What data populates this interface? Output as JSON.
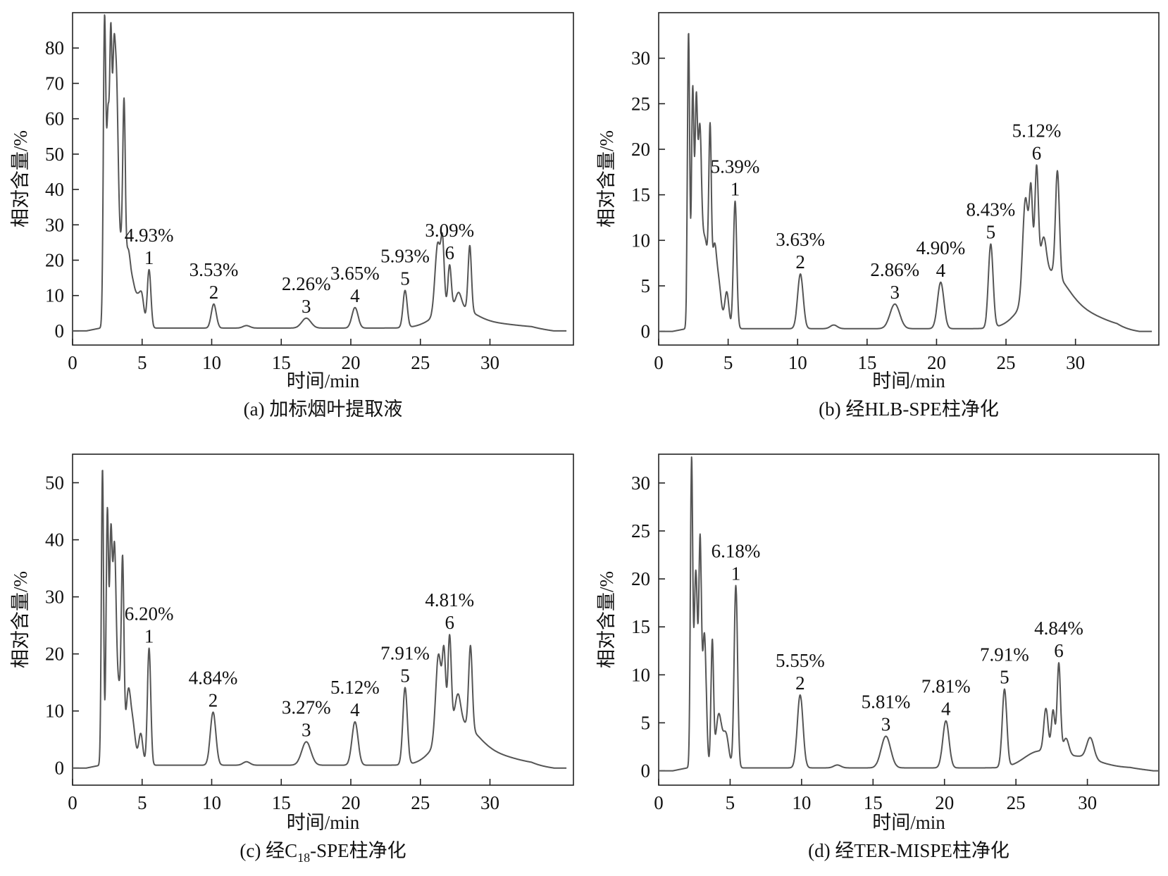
{
  "chart_data": [
    {
      "id": "a",
      "type": "line",
      "caption": "(a) 加标烟叶提取液",
      "xlabel": "时间/min",
      "ylabel": "相对含量/%",
      "xlim": [
        0,
        36
      ],
      "ylim": [
        -4,
        90
      ],
      "xticks": [
        0,
        5,
        10,
        15,
        20,
        25,
        30
      ],
      "yticks": [
        0,
        10,
        20,
        30,
        40,
        50,
        60,
        70,
        80
      ],
      "baseline": 0.8,
      "peaks": [
        [
          2.3,
          86,
          0.09
        ],
        [
          2.55,
          58,
          0.1
        ],
        [
          2.75,
          69,
          0.08
        ],
        [
          2.95,
          58,
          0.1
        ],
        [
          3.15,
          52,
          0.12
        ],
        [
          3.7,
          46,
          0.09
        ],
        [
          3.45,
          24,
          0.3
        ],
        [
          4.0,
          15,
          0.15
        ],
        [
          4.3,
          11,
          0.18
        ],
        [
          4.7,
          8,
          0.2
        ],
        [
          5.0,
          7,
          0.15
        ],
        [
          5.5,
          16.5,
          0.13
        ],
        [
          10.15,
          6.8,
          0.18
        ],
        [
          12.5,
          0.7,
          0.25
        ],
        [
          16.8,
          2.8,
          0.33
        ],
        [
          20.3,
          5.8,
          0.22
        ],
        [
          23.9,
          10.5,
          0.15
        ],
        [
          26.25,
          20,
          0.2
        ],
        [
          26.6,
          17,
          0.12
        ],
        [
          27.1,
          12,
          0.12
        ],
        [
          27.75,
          4,
          0.2
        ],
        [
          28.55,
          18.5,
          0.12
        ],
        [
          26.8,
          3,
          1.1
        ],
        [
          28.0,
          3,
          1.1
        ],
        [
          29.5,
          1.5,
          2.2
        ]
      ],
      "annotations": [
        {
          "peak": "1",
          "percent": "4.93%",
          "x": 5.5
        },
        {
          "peak": "2",
          "percent": "3.53%",
          "x": 10.15
        },
        {
          "peak": "3",
          "percent": "2.26%",
          "x": 16.8
        },
        {
          "peak": "4",
          "percent": "3.65%",
          "x": 20.3
        },
        {
          "peak": "5",
          "percent": "5.93%",
          "x": 23.9
        },
        {
          "peak": "6",
          "percent": "3.09%",
          "x": 27.1
        }
      ]
    },
    {
      "id": "b",
      "type": "line",
      "caption": "(b) 经HLB-SPE柱净化",
      "xlabel": "时间/min",
      "ylabel": "相对含量/%",
      "xlim": [
        0,
        36
      ],
      "ylim": [
        -1.5,
        35
      ],
      "xticks": [
        0,
        5,
        10,
        15,
        20,
        25,
        30
      ],
      "yticks": [
        0,
        5,
        10,
        15,
        20,
        25,
        30
      ],
      "baseline": 0.3,
      "peaks": [
        [
          2.15,
          32.5,
          0.08
        ],
        [
          2.45,
          26,
          0.09
        ],
        [
          2.7,
          22,
          0.09
        ],
        [
          2.95,
          17,
          0.12
        ],
        [
          3.7,
          17.5,
          0.09
        ],
        [
          3.3,
          10,
          0.3
        ],
        [
          4.0,
          7,
          0.15
        ],
        [
          4.3,
          5,
          0.2
        ],
        [
          4.9,
          4,
          0.15
        ],
        [
          5.5,
          14,
          0.12
        ],
        [
          10.2,
          6,
          0.2
        ],
        [
          12.6,
          0.4,
          0.25
        ],
        [
          17.0,
          2.7,
          0.35
        ],
        [
          20.3,
          5.1,
          0.23
        ],
        [
          23.9,
          9.2,
          0.17
        ],
        [
          26.4,
          11,
          0.2
        ],
        [
          26.8,
          10,
          0.12
        ],
        [
          27.2,
          12.5,
          0.13
        ],
        [
          27.7,
          4,
          0.2
        ],
        [
          28.7,
          11.5,
          0.14
        ],
        [
          27.2,
          3,
          1.2
        ],
        [
          28.5,
          2.8,
          1.1
        ],
        [
          29.8,
          2,
          2.0
        ]
      ],
      "annotations": [
        {
          "peak": "1",
          "percent": "5.39%",
          "x": 5.5
        },
        {
          "peak": "2",
          "percent": "3.63%",
          "x": 10.2
        },
        {
          "peak": "3",
          "percent": "2.86%",
          "x": 17.0
        },
        {
          "peak": "4",
          "percent": "4.90%",
          "x": 20.3
        },
        {
          "peak": "5",
          "percent": "8.43%",
          "x": 23.9
        },
        {
          "peak": "6",
          "percent": "5.12%",
          "x": 27.2
        }
      ]
    },
    {
      "id": "c",
      "type": "line",
      "caption": "(c) 经C18-SPE柱净化",
      "caption_parts": {
        "prefix": "(c) 经C",
        "sub": "18",
        "suffix": "-SPE柱净化"
      },
      "xlabel": "时间/min",
      "ylabel": "相对含量/%",
      "xlim": [
        0,
        36
      ],
      "ylim": [
        -3,
        55
      ],
      "xticks": [
        0,
        5,
        10,
        15,
        20,
        25,
        30
      ],
      "yticks": [
        0,
        10,
        20,
        30,
        40,
        50
      ],
      "baseline": 0.5,
      "peaks": [
        [
          2.15,
          52,
          0.08
        ],
        [
          2.5,
          44,
          0.09
        ],
        [
          2.75,
          35,
          0.09
        ],
        [
          3.0,
          30,
          0.12
        ],
        [
          3.6,
          28,
          0.09
        ],
        [
          3.3,
          14,
          0.3
        ],
        [
          4.0,
          10,
          0.15
        ],
        [
          4.3,
          7.5,
          0.2
        ],
        [
          4.9,
          5.5,
          0.15
        ],
        [
          5.5,
          20.5,
          0.12
        ],
        [
          10.1,
          9.3,
          0.2
        ],
        [
          12.5,
          0.6,
          0.25
        ],
        [
          16.8,
          4.1,
          0.33
        ],
        [
          20.3,
          7.6,
          0.22
        ],
        [
          23.9,
          13.5,
          0.16
        ],
        [
          26.3,
          15,
          0.2
        ],
        [
          26.7,
          13,
          0.12
        ],
        [
          27.1,
          16,
          0.12
        ],
        [
          27.7,
          5,
          0.2
        ],
        [
          28.6,
          14.5,
          0.13
        ],
        [
          27.0,
          4,
          1.1
        ],
        [
          28.3,
          3.5,
          1.1
        ],
        [
          29.7,
          2,
          2.0
        ]
      ],
      "annotations": [
        {
          "peak": "1",
          "percent": "6.20%",
          "x": 5.5
        },
        {
          "peak": "2",
          "percent": "4.84%",
          "x": 10.1
        },
        {
          "peak": "3",
          "percent": "3.27%",
          "x": 16.8
        },
        {
          "peak": "4",
          "percent": "5.12%",
          "x": 20.3
        },
        {
          "peak": "5",
          "percent": "7.91%",
          "x": 23.9
        },
        {
          "peak": "6",
          "percent": "4.81%",
          "x": 27.1
        }
      ]
    },
    {
      "id": "d",
      "type": "line",
      "caption": "(d) 经TER-MISPE柱净化",
      "xlabel": "时间/min",
      "ylabel": "相对含量/%",
      "xlim": [
        0,
        35
      ],
      "ylim": [
        -1.5,
        33
      ],
      "xticks": [
        0,
        5,
        10,
        15,
        20,
        25,
        30
      ],
      "yticks": [
        0,
        5,
        10,
        15,
        20,
        25,
        30
      ],
      "baseline": 0.3,
      "peaks": [
        [
          2.3,
          31.5,
          0.08
        ],
        [
          2.6,
          20.5,
          0.12
        ],
        [
          2.9,
          22.5,
          0.09
        ],
        [
          3.2,
          14,
          0.13
        ],
        [
          3.75,
          13,
          0.09
        ],
        [
          4.2,
          5.5,
          0.2
        ],
        [
          4.7,
          3.5,
          0.2
        ],
        [
          5.4,
          19,
          0.12
        ],
        [
          9.9,
          7.6,
          0.2
        ],
        [
          12.5,
          0.3,
          0.25
        ],
        [
          15.9,
          3.3,
          0.33
        ],
        [
          20.1,
          4.9,
          0.22
        ],
        [
          24.2,
          8.1,
          0.16
        ],
        [
          27.1,
          4.5,
          0.15
        ],
        [
          27.6,
          4.5,
          0.12
        ],
        [
          28.0,
          9.5,
          0.12
        ],
        [
          28.5,
          1.8,
          0.2
        ],
        [
          30.2,
          2.2,
          0.25
        ],
        [
          26.5,
          1.5,
          1.0
        ],
        [
          29.2,
          1.2,
          1.5
        ]
      ],
      "annotations": [
        {
          "peak": "1",
          "percent": "6.18%",
          "x": 5.4
        },
        {
          "peak": "2",
          "percent": "5.55%",
          "x": 9.9
        },
        {
          "peak": "3",
          "percent": "5.81%",
          "x": 15.9
        },
        {
          "peak": "4",
          "percent": "7.81%",
          "x": 20.1
        },
        {
          "peak": "5",
          "percent": "7.91%",
          "x": 24.2
        },
        {
          "peak": "6",
          "percent": "4.84%",
          "x": 28.0
        }
      ]
    }
  ]
}
